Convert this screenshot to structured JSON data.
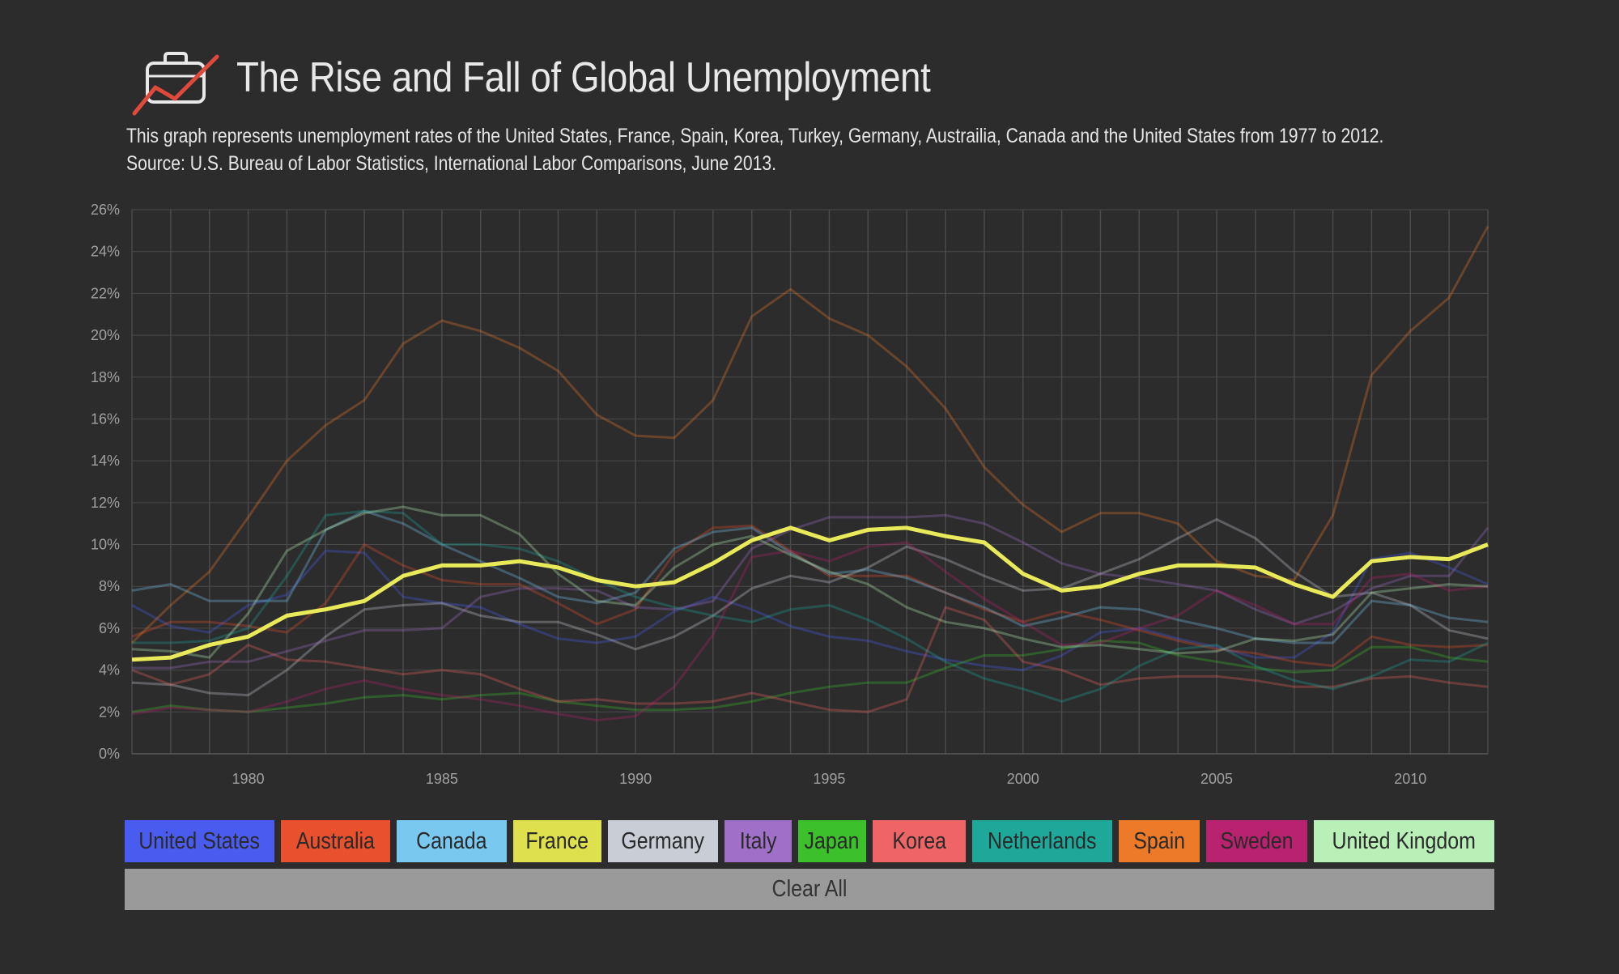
{
  "header": {
    "title": "The Rise and Fall of Global Unemployment",
    "description_line1": "This graph represents unemployment rates of the United States, France, Spain, Korea, Turkey, Germany, Austrailia, Canada and the United States from 1977 to 2012.",
    "description_line2": "Source: U.S. Bureau of Labor Statistics, International Labor Comparisons, June 2013.",
    "logo_icon": "briefcase-chart-icon"
  },
  "colors": {
    "background": "#2c2c2c",
    "grid": "#4a4a4a",
    "tick_text": "#a0a0a0",
    "highlight": "#e8ea5a",
    "logo_line": "#e04a3a"
  },
  "legend": [
    {
      "label": "United States",
      "color": "#4a5cf0"
    },
    {
      "label": "Australia",
      "color": "#e8502e"
    },
    {
      "label": "Canada",
      "color": "#78c8f0"
    },
    {
      "label": "France",
      "color": "#dfe04e"
    },
    {
      "label": "Germany",
      "color": "#c8cdd6"
    },
    {
      "label": "Italy",
      "color": "#a070c8"
    },
    {
      "label": "Japan",
      "color": "#3cc02c"
    },
    {
      "label": "Korea",
      "color": "#ef6464"
    },
    {
      "label": "Netherlands",
      "color": "#1ea89a"
    },
    {
      "label": "Spain",
      "color": "#ec7a28"
    },
    {
      "label": "Sweden",
      "color": "#b8226e"
    },
    {
      "label": "United Kingdom",
      "color": "#b8f0b8"
    }
  ],
  "clear_all_label": "Clear All",
  "chart_data": {
    "type": "line",
    "title": "",
    "xlabel": "",
    "ylabel": "",
    "x": [
      1977,
      1978,
      1979,
      1980,
      1981,
      1982,
      1983,
      1984,
      1985,
      1986,
      1987,
      1988,
      1989,
      1990,
      1991,
      1992,
      1993,
      1994,
      1995,
      1996,
      1997,
      1998,
      1999,
      2000,
      2001,
      2002,
      2003,
      2004,
      2005,
      2006,
      2007,
      2008,
      2009,
      2010,
      2011,
      2012
    ],
    "xlim": [
      1977,
      2012
    ],
    "ylim": [
      0,
      26
    ],
    "x_ticks": [
      "1980",
      "1985",
      "1990",
      "1995",
      "2000",
      "2005",
      "2010"
    ],
    "y_ticks": [
      "0%",
      "2%",
      "4%",
      "6%",
      "8%",
      "10%",
      "12%",
      "14%",
      "16%",
      "18%",
      "20%",
      "22%",
      "24%",
      "26%"
    ],
    "grid": true,
    "highlighted_series": "France",
    "series": [
      {
        "name": "United States",
        "color": "#4a5cf0",
        "values": [
          7.1,
          6.1,
          5.8,
          7.1,
          7.6,
          9.7,
          9.6,
          7.5,
          7.2,
          7.0,
          6.2,
          5.5,
          5.3,
          5.6,
          6.8,
          7.5,
          6.9,
          6.1,
          5.6,
          5.4,
          4.9,
          4.5,
          4.2,
          4.0,
          4.7,
          5.8,
          6.0,
          5.5,
          5.1,
          4.6,
          4.6,
          5.8,
          9.3,
          9.6,
          8.9,
          8.1
        ]
      },
      {
        "name": "Australia",
        "color": "#e8502e",
        "values": [
          5.6,
          6.3,
          6.3,
          6.1,
          5.8,
          7.2,
          10.0,
          9.0,
          8.3,
          8.1,
          8.1,
          7.2,
          6.2,
          6.9,
          9.6,
          10.8,
          10.9,
          9.7,
          8.5,
          8.5,
          8.5,
          7.7,
          6.9,
          6.3,
          6.8,
          6.4,
          5.9,
          5.4,
          5.0,
          4.8,
          4.4,
          4.2,
          5.6,
          5.2,
          5.1,
          5.2
        ]
      },
      {
        "name": "Canada",
        "color": "#78c8f0",
        "values": [
          7.8,
          8.1,
          7.3,
          7.3,
          7.3,
          10.7,
          11.6,
          11.0,
          10.0,
          9.2,
          8.4,
          7.5,
          7.2,
          7.7,
          9.8,
          10.6,
          10.8,
          9.6,
          8.6,
          8.8,
          8.4,
          7.7,
          7.0,
          6.1,
          6.5,
          7.0,
          6.9,
          6.4,
          6.0,
          5.5,
          5.3,
          5.3,
          7.3,
          7.1,
          6.5,
          6.3
        ]
      },
      {
        "name": "France",
        "color": "#e8ea5a",
        "values": [
          4.5,
          4.6,
          5.2,
          5.6,
          6.6,
          6.9,
          7.3,
          8.5,
          9.0,
          9.0,
          9.2,
          8.9,
          8.3,
          8.0,
          8.2,
          9.1,
          10.2,
          10.8,
          10.2,
          10.7,
          10.8,
          10.4,
          10.1,
          8.6,
          7.8,
          8.0,
          8.6,
          9.0,
          9.0,
          8.9,
          8.1,
          7.5,
          9.2,
          9.4,
          9.3,
          10.0
        ]
      },
      {
        "name": "Germany",
        "color": "#c8cdd6",
        "values": [
          3.4,
          3.3,
          2.9,
          2.8,
          4.0,
          5.6,
          6.9,
          7.1,
          7.2,
          6.6,
          6.3,
          6.3,
          5.7,
          5.0,
          5.6,
          6.6,
          7.9,
          8.5,
          8.2,
          8.9,
          9.9,
          9.3,
          8.5,
          7.8,
          7.9,
          8.6,
          9.3,
          10.3,
          11.2,
          10.3,
          8.7,
          7.5,
          7.7,
          7.1,
          5.9,
          5.5
        ]
      },
      {
        "name": "Italy",
        "color": "#a070c8",
        "values": [
          4.1,
          4.1,
          4.4,
          4.4,
          4.9,
          5.4,
          5.9,
          5.9,
          6.0,
          7.5,
          7.9,
          7.9,
          7.8,
          7.0,
          6.9,
          7.3,
          9.8,
          10.7,
          11.3,
          11.3,
          11.3,
          11.4,
          11.0,
          10.1,
          9.1,
          8.6,
          8.4,
          8.1,
          7.8,
          6.9,
          6.2,
          6.8,
          7.9,
          8.5,
          8.5,
          10.8
        ]
      },
      {
        "name": "Japan",
        "color": "#3cc02c",
        "values": [
          2.0,
          2.3,
          2.1,
          2.0,
          2.2,
          2.4,
          2.7,
          2.8,
          2.6,
          2.8,
          2.9,
          2.5,
          2.3,
          2.1,
          2.1,
          2.2,
          2.5,
          2.9,
          3.2,
          3.4,
          3.4,
          4.1,
          4.7,
          4.7,
          5.0,
          5.4,
          5.3,
          4.7,
          4.4,
          4.1,
          3.9,
          4.0,
          5.1,
          5.1,
          4.6,
          4.4
        ]
      },
      {
        "name": "Korea",
        "color": "#ef6464",
        "values": [
          4.0,
          3.3,
          3.8,
          5.2,
          4.5,
          4.4,
          4.1,
          3.8,
          4.0,
          3.8,
          3.1,
          2.5,
          2.6,
          2.4,
          2.4,
          2.5,
          2.9,
          2.5,
          2.1,
          2.0,
          2.6,
          7.0,
          6.4,
          4.4,
          4.0,
          3.3,
          3.6,
          3.7,
          3.7,
          3.5,
          3.2,
          3.2,
          3.6,
          3.7,
          3.4,
          3.2
        ]
      },
      {
        "name": "Netherlands",
        "color": "#1ea89a",
        "values": [
          5.3,
          5.3,
          5.4,
          6.0,
          8.5,
          11.4,
          11.6,
          11.5,
          10.0,
          10.0,
          9.8,
          9.2,
          8.3,
          7.5,
          7.0,
          6.6,
          6.3,
          6.9,
          7.1,
          6.4,
          5.5,
          4.4,
          3.6,
          3.1,
          2.5,
          3.1,
          4.2,
          5.0,
          5.2,
          4.2,
          3.5,
          3.1,
          3.7,
          4.5,
          4.4,
          5.3
        ]
      },
      {
        "name": "Spain",
        "color": "#ec7a28",
        "values": [
          5.3,
          7.1,
          8.7,
          11.3,
          14.0,
          15.7,
          16.9,
          19.6,
          20.7,
          20.2,
          19.4,
          18.3,
          16.2,
          15.2,
          15.1,
          16.9,
          20.9,
          22.2,
          20.8,
          20.0,
          18.5,
          16.5,
          13.7,
          11.9,
          10.6,
          11.5,
          11.5,
          11.0,
          9.2,
          8.5,
          8.3,
          11.4,
          18.1,
          20.2,
          21.8,
          25.2
        ]
      },
      {
        "name": "Sweden",
        "color": "#b8226e",
        "values": [
          1.9,
          2.2,
          2.1,
          2.0,
          2.5,
          3.1,
          3.5,
          3.1,
          2.8,
          2.6,
          2.3,
          1.9,
          1.6,
          1.8,
          3.2,
          5.7,
          9.4,
          9.7,
          9.2,
          9.9,
          10.1,
          8.7,
          7.4,
          6.3,
          5.2,
          5.3,
          6.0,
          6.6,
          7.8,
          7.1,
          6.2,
          6.2,
          8.4,
          8.6,
          7.8,
          8.0
        ]
      },
      {
        "name": "United Kingdom",
        "color": "#b8f0b8",
        "values": [
          5.0,
          4.9,
          4.6,
          6.7,
          9.7,
          10.7,
          11.5,
          11.8,
          11.4,
          11.4,
          10.5,
          8.6,
          7.3,
          7.1,
          8.9,
          10.0,
          10.4,
          9.5,
          8.7,
          8.1,
          7.0,
          6.3,
          6.0,
          5.5,
          5.1,
          5.2,
          5.0,
          4.8,
          4.9,
          5.5,
          5.4,
          5.7,
          7.7,
          7.9,
          8.1,
          8.0
        ]
      }
    ]
  }
}
